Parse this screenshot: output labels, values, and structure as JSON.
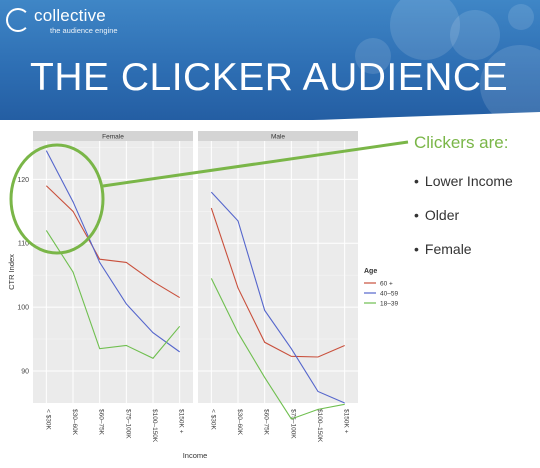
{
  "header": {
    "logo_name": "collective",
    "logo_tagline": "the audience engine",
    "title": "THE CLICKER AUDIENCE"
  },
  "callout": {
    "title": "Clickers are:",
    "bullets": [
      "Lower Income",
      "Older",
      "Female"
    ],
    "color": "#7ab648"
  },
  "chart_data": {
    "type": "line",
    "panels": [
      "Female",
      "Male"
    ],
    "categories": [
      "< $30K",
      "$30–60K",
      "$60–75K",
      "$75–100K",
      "$100–150K",
      "$150K +"
    ],
    "xlabel": "Income",
    "ylabel": "CTR Index",
    "ylim": [
      85,
      126
    ],
    "yticks": [
      90,
      100,
      110,
      120
    ],
    "legend_title": "Age",
    "legend_placement": "right",
    "grid": true,
    "series": [
      {
        "name": "60 +",
        "color": "#c9503c",
        "female": [
          119,
          115,
          107.5,
          107,
          104,
          101.5
        ],
        "male": [
          115.5,
          103,
          94.5,
          92.3,
          92.2,
          94
        ]
      },
      {
        "name": "40–59",
        "color": "#5566cc",
        "female": [
          124.5,
          116.5,
          107,
          100.5,
          96,
          93
        ],
        "male": [
          118,
          113.5,
          99.5,
          93.5,
          86.8,
          85
        ]
      },
      {
        "name": "18–39",
        "color": "#6fbf4f",
        "female": [
          112,
          105.5,
          93.5,
          94,
          92,
          97
        ],
        "male": [
          104.5,
          96,
          89,
          82.5,
          84,
          84.8
        ]
      }
    ]
  }
}
